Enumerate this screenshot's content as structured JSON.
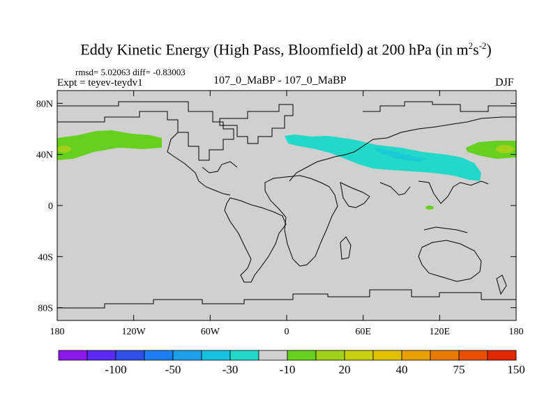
{
  "chart_data": {
    "type": "contour_map",
    "title": "Eddy Kinetic Energy (High Pass, Bloomfield) at 200 hPa (in m",
    "title_units_sup1": "2",
    "title_units_mid": "s",
    "title_units_sup2": "-2",
    "title_close": ")",
    "stats": "rmsd= 5.02063 diff= -0.83003",
    "experiment": "Expt = teyev-teydv1",
    "comparison": "107_0_MaBP - 107_0_MaBP",
    "season": "DJF",
    "x_ticks": [
      {
        "value": -180,
        "label": "180"
      },
      {
        "value": -120,
        "label": "120W"
      },
      {
        "value": -60,
        "label": "60W"
      },
      {
        "value": 0,
        "label": "0"
      },
      {
        "value": 60,
        "label": "60E"
      },
      {
        "value": 120,
        "label": "120E"
      },
      {
        "value": 180,
        "label": "180"
      }
    ],
    "y_ticks": [
      {
        "value": 80,
        "label": "80N"
      },
      {
        "value": 40,
        "label": "40N"
      },
      {
        "value": 0,
        "label": "0"
      },
      {
        "value": -40,
        "label": "40S"
      },
      {
        "value": -80,
        "label": "80S"
      }
    ],
    "xlim": [
      -180,
      180
    ],
    "ylim": [
      -90,
      90
    ],
    "colorbar": {
      "colors": [
        "#8a18e8",
        "#5a28f0",
        "#2f4fe6",
        "#1a7ef0",
        "#1ea0e8",
        "#18c0e0",
        "#22d8c8",
        "#d0d0d0",
        "#66d020",
        "#a0d018",
        "#c8d010",
        "#e0c000",
        "#e8a000",
        "#e87a00",
        "#e85000",
        "#e02800"
      ],
      "tick_labels": [
        "-100",
        "-50",
        "-30",
        "-10",
        "20",
        "40",
        "75",
        "150"
      ]
    },
    "anomalies": [
      {
        "region": "North Pacific west",
        "value_class": "20",
        "lat_center": 45
      },
      {
        "region": "North Pacific east",
        "value_class": "20",
        "lat_center": 45
      },
      {
        "region": "North Atlantic / Eurasia",
        "value_class": "-10",
        "lat_center": 42
      },
      {
        "region": "Indian Ocean",
        "value_class": "20",
        "lat_center": 0
      }
    ]
  }
}
